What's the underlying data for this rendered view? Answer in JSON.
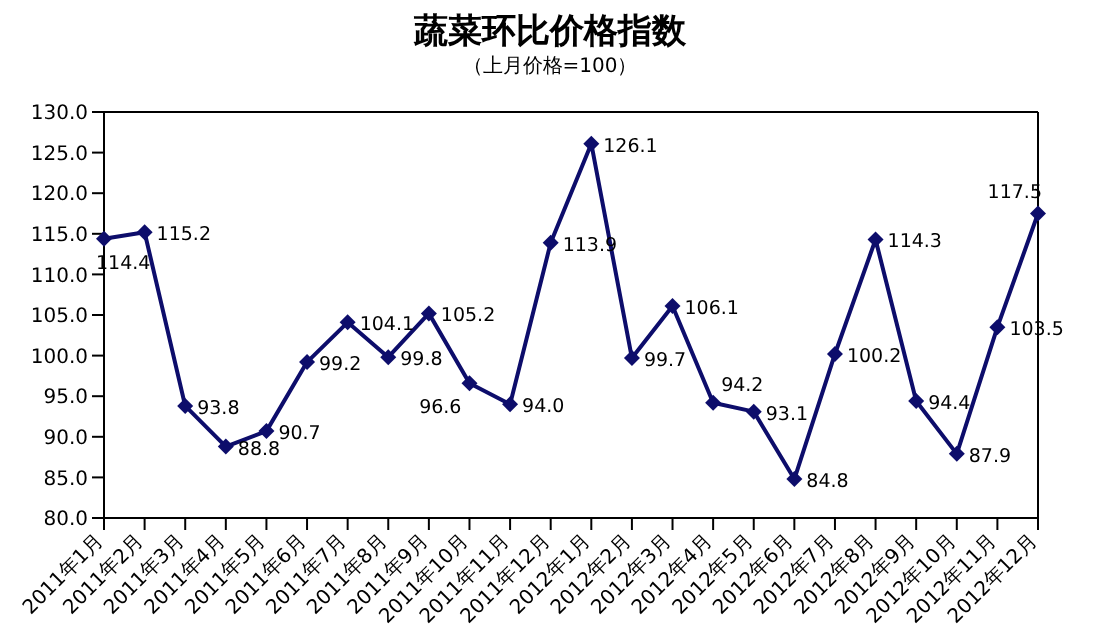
{
  "chart_data": {
    "type": "line",
    "title": "蔬菜环比价格指数",
    "subtitle": "（上月价格=100）",
    "categories": [
      "2011年1月",
      "2011年2月",
      "2011年3月",
      "2011年4月",
      "2011年5月",
      "2011年6月",
      "2011年7月",
      "2011年8月",
      "2011年9月",
      "2011年10月",
      "2011年11月",
      "2011年12月",
      "2012年1月",
      "2012年2月",
      "2012年3月",
      "2012年4月",
      "2012年5月",
      "2012年6月",
      "2012年7月",
      "2012年8月",
      "2012年9月",
      "2012年10月",
      "2012年11月",
      "2012年12月"
    ],
    "series": [
      {
        "color": "#0d0d6b",
        "values": [
          114.4,
          115.2,
          93.8,
          88.8,
          90.7,
          99.2,
          104.1,
          99.8,
          105.2,
          96.6,
          94.0,
          113.9,
          126.1,
          99.7,
          106.1,
          94.2,
          93.1,
          84.8,
          100.2,
          114.3,
          94.4,
          87.9,
          103.5,
          117.5
        ],
        "value_labels": [
          "114.4",
          "115.2",
          "93.8",
          "88.8",
          "90.7",
          "99.2",
          "104.1",
          "99.8",
          "105.2",
          "96.6",
          "94.0",
          "113.9",
          "126.1",
          "99.7",
          "106.1",
          "94.2",
          "93.1",
          "84.8",
          "100.2",
          "114.3",
          "94.4",
          "87.9",
          "103.5",
          "117.5"
        ]
      }
    ],
    "ylim": [
      80,
      130
    ],
    "yticks": [
      {
        "value": 80,
        "label": "80.0"
      },
      {
        "value": 85,
        "label": "85.0"
      },
      {
        "value": 90,
        "label": "90.0"
      },
      {
        "value": 95,
        "label": "95.0"
      },
      {
        "value": 100,
        "label": "100.0"
      },
      {
        "value": 105,
        "label": "105.0"
      },
      {
        "value": 110,
        "label": "110.0"
      },
      {
        "value": 115,
        "label": "115.0"
      },
      {
        "value": 120,
        "label": "120.0"
      },
      {
        "value": 125,
        "label": "125.0"
      },
      {
        "value": 130,
        "label": "130.0"
      }
    ],
    "marker": "diamond",
    "line_style": "solid",
    "grid": false,
    "legend": false
  }
}
